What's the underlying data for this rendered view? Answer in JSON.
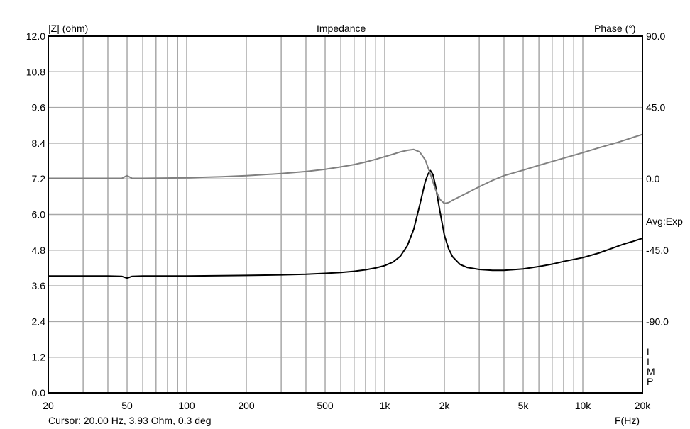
{
  "title": "Impedance",
  "left_axis_label": "|Z| (ohm)",
  "right_axis_label": "Phase (°)",
  "x_axis_label": "F(Hz)",
  "side_note": "Avg:Exp",
  "side_tag": [
    "L",
    "I",
    "M",
    "P"
  ],
  "cursor_text": "Cursor: 20.00 Hz, 3.93 Ohm, 0.3 deg",
  "colors": {
    "magnitude": "#000000",
    "phase": "#808080",
    "grid": "#a8a8a8",
    "frame": "#000000"
  },
  "chart_data": {
    "type": "line",
    "title": "Impedance",
    "xlabel": "F(Hz)",
    "ylabel": "|Z| (ohm)",
    "y2label": "Phase (°)",
    "x_scale": "log",
    "xlim": [
      20,
      20000
    ],
    "ylim": [
      0,
      12
    ],
    "y2lim": [
      -135,
      90
    ],
    "grid": true,
    "x_ticks": [
      {
        "v": 20,
        "label": "20"
      },
      {
        "v": 50,
        "label": "50"
      },
      {
        "v": 100,
        "label": "100"
      },
      {
        "v": 200,
        "label": "200"
      },
      {
        "v": 500,
        "label": "500"
      },
      {
        "v": 1000,
        "label": "1k"
      },
      {
        "v": 2000,
        "label": "2k"
      },
      {
        "v": 5000,
        "label": "5k"
      },
      {
        "v": 10000,
        "label": "10k"
      },
      {
        "v": 20000,
        "label": "20k"
      }
    ],
    "y_ticks": [
      "0.0",
      "1.2",
      "2.4",
      "3.6",
      "4.8",
      "6.0",
      "7.2",
      "8.4",
      "9.6",
      "10.8",
      "12.0"
    ],
    "y2_ticks": [
      "90.0",
      "45.0",
      "0.0",
      "-45.0",
      "-90.0"
    ],
    "series": [
      {
        "axis": "left",
        "x": [
          20,
          30,
          40,
          47,
          50,
          53,
          60,
          80,
          100,
          150,
          200,
          300,
          400,
          500,
          600,
          700,
          800,
          900,
          1000,
          1100,
          1200,
          1300,
          1400,
          1500,
          1600,
          1650,
          1700,
          1750,
          1800,
          1900,
          2000,
          2100,
          2200,
          2400,
          2600,
          3000,
          3500,
          4000,
          5000,
          6000,
          7000,
          8000,
          10000,
          12000,
          14000,
          16000,
          18000,
          20000
        ],
        "y": [
          3.93,
          3.93,
          3.93,
          3.92,
          3.86,
          3.92,
          3.93,
          3.93,
          3.93,
          3.94,
          3.95,
          3.97,
          3.99,
          4.02,
          4.05,
          4.09,
          4.14,
          4.2,
          4.28,
          4.4,
          4.6,
          4.95,
          5.5,
          6.3,
          7.1,
          7.35,
          7.48,
          7.35,
          7.0,
          6.1,
          5.3,
          4.85,
          4.58,
          4.32,
          4.22,
          4.15,
          4.12,
          4.12,
          4.17,
          4.25,
          4.33,
          4.42,
          4.55,
          4.7,
          4.86,
          5.0,
          5.1,
          5.2
        ]
      },
      {
        "axis": "right",
        "x": [
          20,
          30,
          40,
          47,
          50,
          53,
          60,
          80,
          100,
          150,
          200,
          300,
          400,
          500,
          600,
          700,
          800,
          900,
          1000,
          1100,
          1200,
          1300,
          1400,
          1500,
          1600,
          1700,
          1800,
          1900,
          2000,
          2100,
          2200,
          2500,
          3000,
          3500,
          4000,
          5000,
          6000,
          8000,
          10000,
          12000,
          15000,
          20000
        ],
        "y": [
          0.3,
          0.3,
          0.3,
          0.3,
          2.0,
          0.3,
          0.3,
          0.5,
          0.7,
          1.3,
          2.0,
          3.3,
          4.6,
          6.0,
          7.5,
          9.0,
          10.6,
          12.3,
          14.0,
          15.5,
          17.0,
          18.0,
          18.5,
          17.0,
          12.0,
          3.0,
          -6.5,
          -13.0,
          -15.5,
          -15.0,
          -13.5,
          -10.0,
          -5.0,
          -1.0,
          2.0,
          5.5,
          8.5,
          13.0,
          16.5,
          19.5,
          23.0,
          28.0
        ]
      }
    ]
  }
}
